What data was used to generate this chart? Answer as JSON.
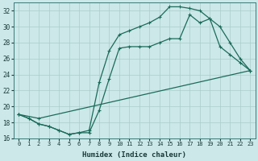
{
  "xlabel": "Humidex (Indice chaleur)",
  "bg_color": "#cce8e8",
  "line_color": "#1a6b5a",
  "grid_color": "#aacccc",
  "xlim": [
    -0.5,
    23.5
  ],
  "ylim": [
    16,
    33
  ],
  "xticks": [
    0,
    1,
    2,
    3,
    4,
    5,
    6,
    7,
    8,
    9,
    10,
    11,
    12,
    13,
    14,
    15,
    16,
    17,
    18,
    19,
    20,
    21,
    22,
    23
  ],
  "yticks": [
    16,
    18,
    20,
    22,
    24,
    26,
    28,
    30,
    32
  ],
  "line1_x": [
    0,
    1,
    2,
    3,
    4,
    5,
    6,
    7,
    8,
    9,
    10,
    11,
    12,
    13,
    14,
    15,
    16,
    17,
    18,
    19,
    20,
    21,
    22,
    23
  ],
  "line1_y": [
    19.0,
    18.5,
    17.8,
    17.5,
    17.0,
    16.5,
    16.7,
    17.0,
    23.0,
    27.0,
    29.0,
    29.5,
    30.0,
    30.5,
    31.2,
    32.5,
    32.5,
    32.3,
    32.0,
    31.0,
    30.0,
    28.0,
    26.0,
    24.5
  ],
  "line2_x": [
    0,
    1,
    2,
    3,
    4,
    5,
    6,
    7,
    8,
    9,
    10,
    11,
    12,
    13,
    14,
    15,
    16,
    17,
    18,
    19,
    20,
    21,
    22,
    23
  ],
  "line2_y": [
    19.0,
    18.5,
    17.8,
    17.5,
    17.0,
    16.5,
    16.7,
    16.7,
    19.5,
    23.5,
    27.3,
    27.5,
    27.5,
    27.5,
    28.0,
    28.5,
    28.5,
    31.5,
    30.5,
    31.0,
    27.5,
    26.5,
    25.5,
    24.5
  ],
  "line3_x": [
    0,
    2,
    23
  ],
  "line3_y": [
    19.0,
    18.5,
    24.5
  ]
}
